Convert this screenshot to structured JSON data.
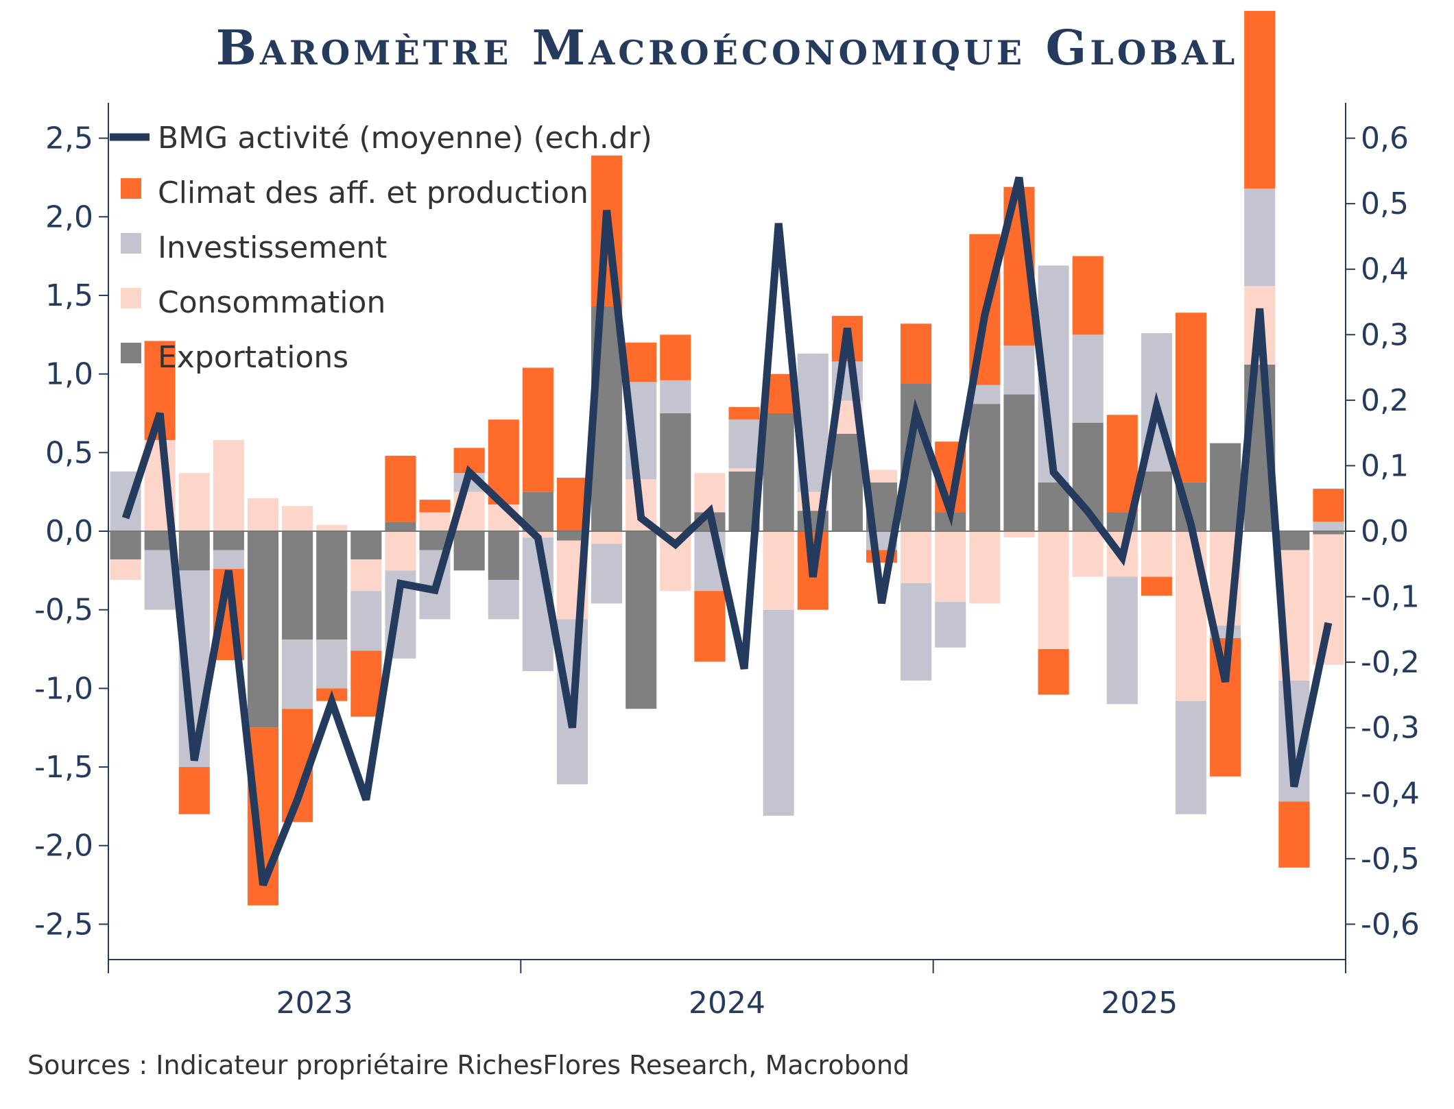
{
  "chart_data": {
    "type": "bar",
    "title": "Baromètre Macroéconomique Global",
    "source": "Sources : Indicateur propriétaire RichesFlores Research, Macrobond",
    "x_labels": [
      "2023",
      "2024",
      "2025"
    ],
    "ylim_left": [
      -2.5,
      2.5
    ],
    "ylim_right": [
      -0.6,
      0.6
    ],
    "y_ticks_left": [
      "2,5",
      "2,0",
      "1,5",
      "1,0",
      "0,5",
      "0,0",
      "-0,5",
      "-1,0",
      "-1,5",
      "-2,0",
      "-2,5"
    ],
    "y_ticks_right": [
      "0,6",
      "0,5",
      "0,4",
      "0,3",
      "0,2",
      "0,1",
      "0,0",
      "-0,1",
      "-0,2",
      "-0,3",
      "-0,4",
      "-0,5",
      "-0,6"
    ],
    "legend_position": "top-left",
    "series": [
      {
        "name": "Climat des aff. et production",
        "kind": "bar",
        "color": "#ff6b2b",
        "values": [
          0,
          0.63,
          -0.3,
          -0.58,
          -1.13,
          -0.72,
          -0.08,
          -0.42,
          0.42,
          0.08,
          0.16,
          0.54,
          0.79,
          0.34,
          0.96,
          0.25,
          0.29,
          -0.45,
          0.08,
          0.25,
          -0.5,
          0.29,
          -0.08,
          0.38,
          0.45,
          0.96,
          1.01,
          -0.29,
          0.5,
          0.62,
          -0.12,
          1.08,
          -0.88,
          1.13,
          -0.42,
          0.21
        ]
      },
      {
        "name": "Investissement",
        "kind": "bar",
        "color": "#c4c4d0",
        "values": [
          0.38,
          -0.38,
          -1.25,
          -0.12,
          0,
          -0.44,
          -0.31,
          -0.38,
          -0.56,
          -0.44,
          0.12,
          -0.25,
          -0.85,
          -1.05,
          -0.38,
          0.62,
          0.21,
          -0.38,
          0.31,
          -1.31,
          0.88,
          0.25,
          -0.12,
          -0.62,
          -0.29,
          0.12,
          0.31,
          1.38,
          0.56,
          -0.81,
          0.88,
          -0.72,
          -0.08,
          0.62,
          -0.77,
          0.06
        ]
      },
      {
        "name": "Consommation",
        "kind": "bar",
        "color": "#fdd6c9",
        "values": [
          -0.13,
          0.58,
          0.37,
          0.58,
          0.21,
          0.16,
          0.04,
          -0.2,
          -0.25,
          0.12,
          0.25,
          0.17,
          -0.04,
          -0.5,
          -0.08,
          0.33,
          -0.38,
          0.25,
          0.02,
          -0.5,
          0.12,
          0.21,
          0.08,
          -0.33,
          -0.45,
          -0.46,
          -0.04,
          -0.75,
          -0.29,
          -0.29,
          -0.29,
          -1.08,
          -0.6,
          0.5,
          -0.83,
          -0.83
        ]
      },
      {
        "name": "Exportations",
        "kind": "bar",
        "color": "#808080",
        "values": [
          -0.18,
          -0.12,
          -0.25,
          -0.12,
          -1.25,
          -0.69,
          -0.69,
          -0.18,
          0.06,
          -0.12,
          -0.25,
          -0.31,
          0.25,
          -0.06,
          1.43,
          -1.13,
          0.75,
          0.12,
          0.38,
          0.75,
          0.13,
          0.62,
          0.31,
          0.94,
          0.12,
          0.81,
          0.87,
          0.31,
          0.69,
          0.12,
          0.38,
          0.31,
          0.56,
          1.06,
          -0.12,
          -0.02
        ]
      },
      {
        "name": "BMG activité (moyenne) (ech.dr)",
        "kind": "line",
        "axis": "right",
        "color": "#243b5e",
        "values": [
          0.02,
          0.18,
          -0.35,
          -0.06,
          -0.54,
          -0.41,
          -0.26,
          -0.41,
          -0.08,
          -0.09,
          0.09,
          0.04,
          -0.01,
          -0.3,
          0.49,
          0.02,
          -0.02,
          0.03,
          -0.21,
          0.47,
          -0.07,
          0.31,
          -0.11,
          0.18,
          0.03,
          0.33,
          0.54,
          0.09,
          0.03,
          -0.04,
          0.19,
          0.01,
          -0.23,
          0.34,
          -0.39,
          -0.14
        ]
      }
    ]
  }
}
